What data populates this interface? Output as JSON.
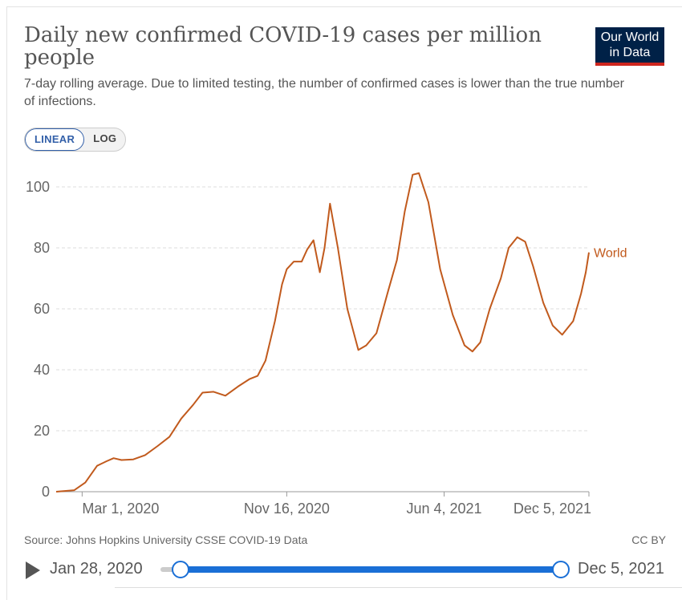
{
  "header": {
    "title": "Daily new confirmed COVID-19 cases per million people",
    "subtitle": "7-day rolling average. Due to limited testing, the number of confirmed cases is lower than the true number of infections.",
    "logo_line1": "Our World",
    "logo_line2": "in Data"
  },
  "controls": {
    "linear_label": "LINEAR",
    "log_label": "LOG",
    "active_scale": "linear"
  },
  "footer": {
    "source": "Source: Johns Hopkins University CSSE COVID-19 Data",
    "license": "CC BY"
  },
  "timeline": {
    "start_date": "Jan 28, 2020",
    "end_date": "Dec 5, 2021"
  },
  "colors": {
    "series": "#c15a1d",
    "grid": "#dddddd",
    "slider": "#1a6fd6"
  },
  "chart_data": {
    "type": "line",
    "title": "Daily new confirmed COVID-19 cases per million people",
    "xlabel": "",
    "ylabel": "",
    "ylim": [
      0,
      100
    ],
    "yticks": [
      0,
      20,
      40,
      60,
      80,
      100
    ],
    "xlim": [
      "2020-01-28",
      "2021-12-05"
    ],
    "xticks": [
      {
        "date": "2020-03-01",
        "label": "Mar 1, 2020"
      },
      {
        "date": "2020-11-16",
        "label": "Nov 16, 2020"
      },
      {
        "date": "2021-06-04",
        "label": "Jun 4, 2021"
      },
      {
        "date": "2021-12-05",
        "label": "Dec 5, 2021"
      }
    ],
    "grid": true,
    "series": [
      {
        "name": "World",
        "points": [
          [
            "2020-01-28",
            0.0
          ],
          [
            "2020-02-20",
            0.5
          ],
          [
            "2020-03-05",
            3.0
          ],
          [
            "2020-03-20",
            8.5
          ],
          [
            "2020-04-01",
            10.0
          ],
          [
            "2020-04-10",
            11.0
          ],
          [
            "2020-04-20",
            10.4
          ],
          [
            "2020-05-05",
            10.6
          ],
          [
            "2020-05-20",
            12.0
          ],
          [
            "2020-06-05",
            15.0
          ],
          [
            "2020-06-20",
            18.0
          ],
          [
            "2020-07-05",
            24.0
          ],
          [
            "2020-07-20",
            28.5
          ],
          [
            "2020-08-01",
            32.5
          ],
          [
            "2020-08-15",
            32.8
          ],
          [
            "2020-08-30",
            31.5
          ],
          [
            "2020-09-15",
            34.5
          ],
          [
            "2020-09-30",
            37.0
          ],
          [
            "2020-10-10",
            38.0
          ],
          [
            "2020-10-20",
            43.0
          ],
          [
            "2020-11-01",
            56.0
          ],
          [
            "2020-11-10",
            68.0
          ],
          [
            "2020-11-16",
            73.0
          ],
          [
            "2020-11-25",
            75.5
          ],
          [
            "2020-12-05",
            75.5
          ],
          [
            "2020-12-12",
            79.5
          ],
          [
            "2020-12-20",
            82.5
          ],
          [
            "2020-12-28",
            72.0
          ],
          [
            "2021-01-03",
            80.0
          ],
          [
            "2021-01-10",
            94.5
          ],
          [
            "2021-01-20",
            80.0
          ],
          [
            "2021-02-01",
            60.0
          ],
          [
            "2021-02-15",
            46.5
          ],
          [
            "2021-02-25",
            48.0
          ],
          [
            "2021-03-10",
            52.0
          ],
          [
            "2021-03-25",
            66.0
          ],
          [
            "2021-04-05",
            76.0
          ],
          [
            "2021-04-15",
            92.0
          ],
          [
            "2021-04-25",
            104.0
          ],
          [
            "2021-05-03",
            104.5
          ],
          [
            "2021-05-15",
            95.0
          ],
          [
            "2021-05-30",
            73.0
          ],
          [
            "2021-06-15",
            58.0
          ],
          [
            "2021-06-30",
            48.0
          ],
          [
            "2021-07-10",
            46.0
          ],
          [
            "2021-07-20",
            49.0
          ],
          [
            "2021-08-01",
            60.0
          ],
          [
            "2021-08-15",
            70.0
          ],
          [
            "2021-08-25",
            80.0
          ],
          [
            "2021-09-05",
            83.5
          ],
          [
            "2021-09-15",
            82.0
          ],
          [
            "2021-09-25",
            74.0
          ],
          [
            "2021-10-08",
            62.0
          ],
          [
            "2021-10-20",
            54.5
          ],
          [
            "2021-11-01",
            51.5
          ],
          [
            "2021-11-15",
            56.0
          ],
          [
            "2021-11-25",
            65.0
          ],
          [
            "2021-12-01",
            72.0
          ],
          [
            "2021-12-05",
            78.5
          ]
        ]
      }
    ]
  }
}
